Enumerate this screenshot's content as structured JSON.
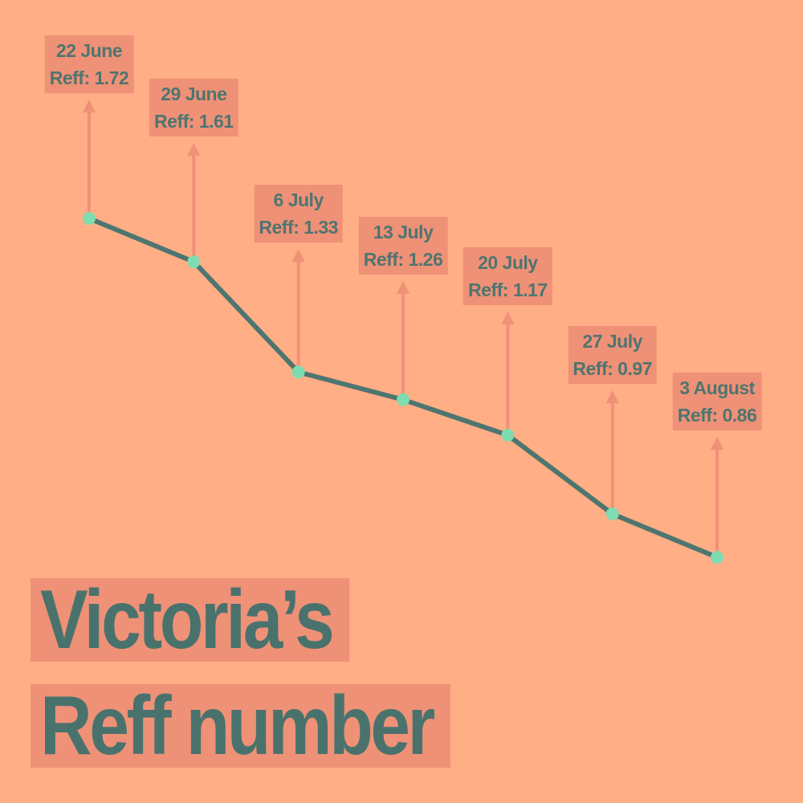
{
  "title": {
    "line1": "Victoria’s",
    "line2": "Reff number"
  },
  "colors": {
    "background": "#ffae85",
    "label_box": "#ef9177",
    "line": "#4e7570",
    "point": "#7fdcb0",
    "arrow": "#ef9177",
    "text": "#4e7570"
  },
  "chart_data": {
    "type": "line",
    "title": "Victoria’s Reff number",
    "xlabel": "",
    "ylabel": "",
    "grid": false,
    "legend": "none",
    "series": [
      {
        "values": [
          1.72,
          1.61,
          1.33,
          1.26,
          1.17,
          0.97,
          0.86
        ]
      }
    ],
    "categories": [
      "22 June",
      "29 June",
      "6 July",
      "13 July",
      "20 July",
      "27 July",
      "3 August"
    ],
    "labels": [
      {
        "date": "22 June",
        "value_text": "Reff: 1.72"
      },
      {
        "date": "29 June",
        "value_text": "Reff: 1.61"
      },
      {
        "date": "6 July",
        "value_text": "Reff: 1.33"
      },
      {
        "date": "13 July",
        "value_text": "Reff: 1.26"
      },
      {
        "date": "20 July",
        "value_text": "Reff: 1.17"
      },
      {
        "date": "27 July",
        "value_text": "Reff: 0.97"
      },
      {
        "date": "3 August",
        "value_text": "Reff: 0.86"
      }
    ]
  }
}
